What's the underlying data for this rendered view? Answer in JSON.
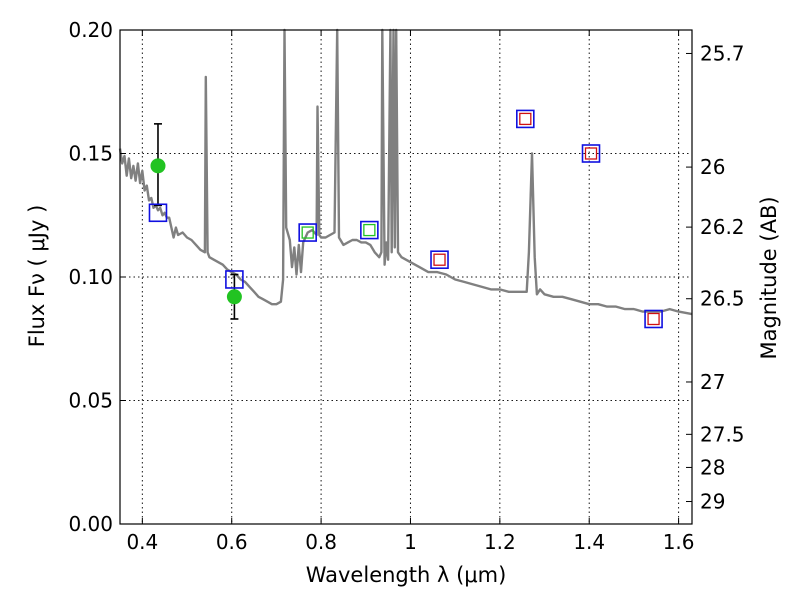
{
  "chart_data": {
    "type": "scatter",
    "xlabel": "Wavelength  λ (μm)",
    "ylabel": "Flux  Fν  ( μJy )",
    "ylabel_right": "Magnitude (AB)",
    "xlim": [
      0.35,
      1.63
    ],
    "ylim": [
      0.0,
      0.2
    ],
    "grid": true,
    "x_ticks": [
      0.4,
      0.6,
      0.8,
      1.0,
      1.2,
      1.4,
      1.6
    ],
    "x_tick_labels": [
      "0.4",
      "0.6",
      "0.8",
      "1",
      "1.2",
      "1.4",
      "1.6"
    ],
    "y_ticks": [
      0.0,
      0.05,
      0.1,
      0.15,
      0.2
    ],
    "y_tick_labels": [
      "0.00",
      "0.05",
      "0.10",
      "0.15",
      "0.20"
    ],
    "right_ticks": [
      {
        "label": "25.7",
        "flux": 0.1905
      },
      {
        "label": "26",
        "flux": 0.1445
      },
      {
        "label": "26.2",
        "flux": 0.1202
      },
      {
        "label": "26.5",
        "flux": 0.0912
      },
      {
        "label": "27",
        "flux": 0.0575
      },
      {
        "label": "27.5",
        "flux": 0.0363
      },
      {
        "label": "28",
        "flux": 0.0229
      },
      {
        "label": "29",
        "flux": 0.0091
      }
    ],
    "colors": {
      "model": "#808080",
      "observed": "#22c322",
      "model_box": "#1010e0",
      "red_box": "#d01010",
      "green_box": "#22c322",
      "errorbar": "#000000"
    },
    "series": [
      {
        "type": "line",
        "points": [
          [
            0.35,
            0.152
          ],
          [
            0.355,
            0.146
          ],
          [
            0.36,
            0.149
          ],
          [
            0.365,
            0.141
          ],
          [
            0.37,
            0.148
          ],
          [
            0.375,
            0.14
          ],
          [
            0.38,
            0.145
          ],
          [
            0.385,
            0.139
          ],
          [
            0.39,
            0.146
          ],
          [
            0.395,
            0.138
          ],
          [
            0.4,
            0.143
          ],
          [
            0.405,
            0.135
          ],
          [
            0.41,
            0.137
          ],
          [
            0.415,
            0.131
          ],
          [
            0.42,
            0.132
          ],
          [
            0.425,
            0.128
          ],
          [
            0.43,
            0.129
          ],
          [
            0.435,
            0.127
          ],
          [
            0.44,
            0.128
          ],
          [
            0.445,
            0.125
          ],
          [
            0.45,
            0.126
          ],
          [
            0.455,
            0.124
          ],
          [
            0.46,
            0.124
          ],
          [
            0.465,
            0.12
          ],
          [
            0.47,
            0.116
          ],
          [
            0.475,
            0.12
          ],
          [
            0.48,
            0.117
          ],
          [
            0.49,
            0.118
          ],
          [
            0.5,
            0.116
          ],
          [
            0.51,
            0.115
          ],
          [
            0.52,
            0.113
          ],
          [
            0.53,
            0.111
          ],
          [
            0.54,
            0.11
          ],
          [
            0.542,
            0.181
          ],
          [
            0.546,
            0.11
          ],
          [
            0.55,
            0.108
          ],
          [
            0.56,
            0.107
          ],
          [
            0.57,
            0.106
          ],
          [
            0.58,
            0.105
          ],
          [
            0.59,
            0.103
          ],
          [
            0.6,
            0.102
          ],
          [
            0.61,
            0.101
          ],
          [
            0.62,
            0.099
          ],
          [
            0.63,
            0.098
          ],
          [
            0.64,
            0.096
          ],
          [
            0.65,
            0.094
          ],
          [
            0.66,
            0.092
          ],
          [
            0.67,
            0.091
          ],
          [
            0.68,
            0.09
          ],
          [
            0.69,
            0.089
          ],
          [
            0.7,
            0.089
          ],
          [
            0.71,
            0.09
          ],
          [
            0.715,
            0.099
          ],
          [
            0.718,
            0.2
          ],
          [
            0.722,
            0.12
          ],
          [
            0.73,
            0.115
          ],
          [
            0.735,
            0.104
          ],
          [
            0.74,
            0.112
          ],
          [
            0.745,
            0.101
          ],
          [
            0.75,
            0.113
          ],
          [
            0.755,
            0.102
          ],
          [
            0.76,
            0.114
          ],
          [
            0.77,
            0.118
          ],
          [
            0.78,
            0.119
          ],
          [
            0.79,
            0.117
          ],
          [
            0.792,
            0.169
          ],
          [
            0.796,
            0.117
          ],
          [
            0.8,
            0.116
          ],
          [
            0.81,
            0.116
          ],
          [
            0.82,
            0.117
          ],
          [
            0.83,
            0.118
          ],
          [
            0.836,
            0.2
          ],
          [
            0.84,
            0.116
          ],
          [
            0.85,
            0.113
          ],
          [
            0.86,
            0.114
          ],
          [
            0.87,
            0.115
          ],
          [
            0.88,
            0.115
          ],
          [
            0.89,
            0.114
          ],
          [
            0.9,
            0.114
          ],
          [
            0.91,
            0.113
          ],
          [
            0.92,
            0.11
          ],
          [
            0.93,
            0.108
          ],
          [
            0.935,
            0.11
          ],
          [
            0.937,
            0.2
          ],
          [
            0.942,
            0.105
          ],
          [
            0.946,
            0.114
          ],
          [
            0.95,
            0.107
          ],
          [
            0.955,
            0.2
          ],
          [
            0.958,
            0.11
          ],
          [
            0.962,
            0.2
          ],
          [
            0.965,
            0.112
          ],
          [
            0.968,
            0.2
          ],
          [
            0.972,
            0.11
          ],
          [
            0.98,
            0.108
          ],
          [
            0.99,
            0.107
          ],
          [
            1.0,
            0.106
          ],
          [
            1.02,
            0.104
          ],
          [
            1.04,
            0.102
          ],
          [
            1.06,
            0.102
          ],
          [
            1.08,
            0.101
          ],
          [
            1.1,
            0.099
          ],
          [
            1.12,
            0.098
          ],
          [
            1.14,
            0.097
          ],
          [
            1.16,
            0.096
          ],
          [
            1.18,
            0.095
          ],
          [
            1.2,
            0.095
          ],
          [
            1.22,
            0.094
          ],
          [
            1.24,
            0.094
          ],
          [
            1.26,
            0.094
          ],
          [
            1.265,
            0.11
          ],
          [
            1.272,
            0.15
          ],
          [
            1.278,
            0.108
          ],
          [
            1.283,
            0.093
          ],
          [
            1.29,
            0.095
          ],
          [
            1.3,
            0.093
          ],
          [
            1.32,
            0.092
          ],
          [
            1.34,
            0.092
          ],
          [
            1.36,
            0.091
          ],
          [
            1.38,
            0.09
          ],
          [
            1.4,
            0.089
          ],
          [
            1.42,
            0.089
          ],
          [
            1.44,
            0.088
          ],
          [
            1.46,
            0.088
          ],
          [
            1.48,
            0.087
          ],
          [
            1.5,
            0.087
          ],
          [
            1.52,
            0.086
          ],
          [
            1.54,
            0.086
          ],
          [
            1.56,
            0.086
          ],
          [
            1.58,
            0.087
          ],
          [
            1.6,
            0.086
          ],
          [
            1.63,
            0.085
          ]
        ]
      },
      {
        "type": "errorbar",
        "points": [
          {
            "x": 0.435,
            "y": 0.145,
            "yerr_low": 0.129,
            "yerr_high": 0.162
          },
          {
            "x": 0.606,
            "y": 0.092,
            "yerr_low": 0.083,
            "yerr_high": 0.101
          }
        ]
      },
      {
        "type": "squares",
        "points": [
          {
            "x": 0.435,
            "y": 0.126,
            "inner": "none"
          },
          {
            "x": 0.606,
            "y": 0.099,
            "inner": "none"
          },
          {
            "x": 0.77,
            "y": 0.118,
            "inner": "green"
          },
          {
            "x": 0.908,
            "y": 0.119,
            "inner": "green"
          },
          {
            "x": 1.065,
            "y": 0.107,
            "inner": "red"
          },
          {
            "x": 1.257,
            "y": 0.164,
            "inner": "red"
          },
          {
            "x": 1.404,
            "y": 0.15,
            "inner": "red"
          },
          {
            "x": 1.544,
            "y": 0.083,
            "inner": "red"
          }
        ]
      }
    ]
  }
}
